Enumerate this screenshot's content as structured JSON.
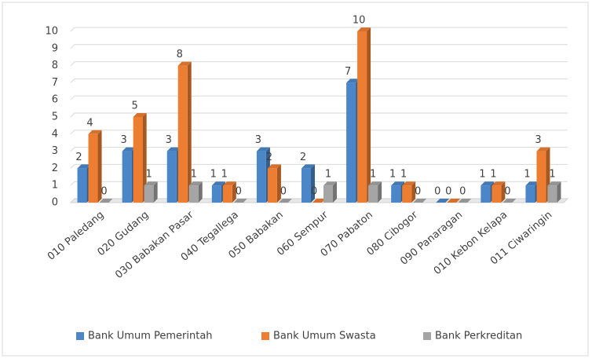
{
  "chart_data": {
    "type": "bar",
    "categories": [
      "010 Paledang",
      "020 Gudang",
      "030 Babakan Pasar",
      "040 Tegallega",
      "050 Babakan",
      "060 Sempur",
      "070 Pabaton",
      "080 Cibogor",
      "090 Panaragan",
      "010 Kebon Kelapa",
      "011 Ciwaringin"
    ],
    "series": [
      {
        "name": "Bank Umum Pemerintah",
        "color": "#4a86c8",
        "values": [
          2,
          3,
          3,
          1,
          3,
          2,
          7,
          1,
          0,
          1,
          1
        ]
      },
      {
        "name": "Bank Umum Swasta",
        "color": "#ed7d31",
        "values": [
          4,
          5,
          8,
          1,
          2,
          0,
          10,
          1,
          0,
          1,
          3
        ]
      },
      {
        "name": "Bank Perkreditan",
        "color": "#a5a5a5",
        "values": [
          0,
          1,
          1,
          0,
          0,
          1,
          1,
          0,
          0,
          0,
          1
        ]
      }
    ],
    "ylim": [
      0,
      10
    ],
    "yticks": [
      0,
      1,
      2,
      3,
      4,
      5,
      6,
      7,
      8,
      9,
      10
    ],
    "grid": true,
    "legend": "bottom"
  }
}
